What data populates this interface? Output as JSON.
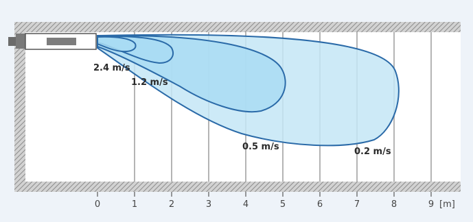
{
  "diagram": {
    "x_axis": {
      "ticks": [
        "0",
        "1",
        "2",
        "3",
        "4",
        "5",
        "6",
        "7",
        "8",
        "9"
      ],
      "unit": "[m]"
    },
    "velocity_zones": [
      {
        "label": "2.4 m/s",
        "reach_m": 1.0,
        "fill": "#a9dcf3"
      },
      {
        "label": "1.2 m/s",
        "reach_m": 2.0,
        "fill": "#a9dcf3"
      },
      {
        "label": "0.5 m/s",
        "reach_m": 5.0,
        "fill": "#a9dcf3"
      },
      {
        "label": "0.2 m/s",
        "reach_m": 8.0,
        "fill": "#c4e6f6"
      }
    ],
    "colors": {
      "background": "#eef3f9",
      "room_interior": "#ffffff",
      "wall_hatch": "#9a9a9a",
      "grid_line": "#b4b4b4",
      "zone_outline": "#2a6aa8"
    }
  }
}
